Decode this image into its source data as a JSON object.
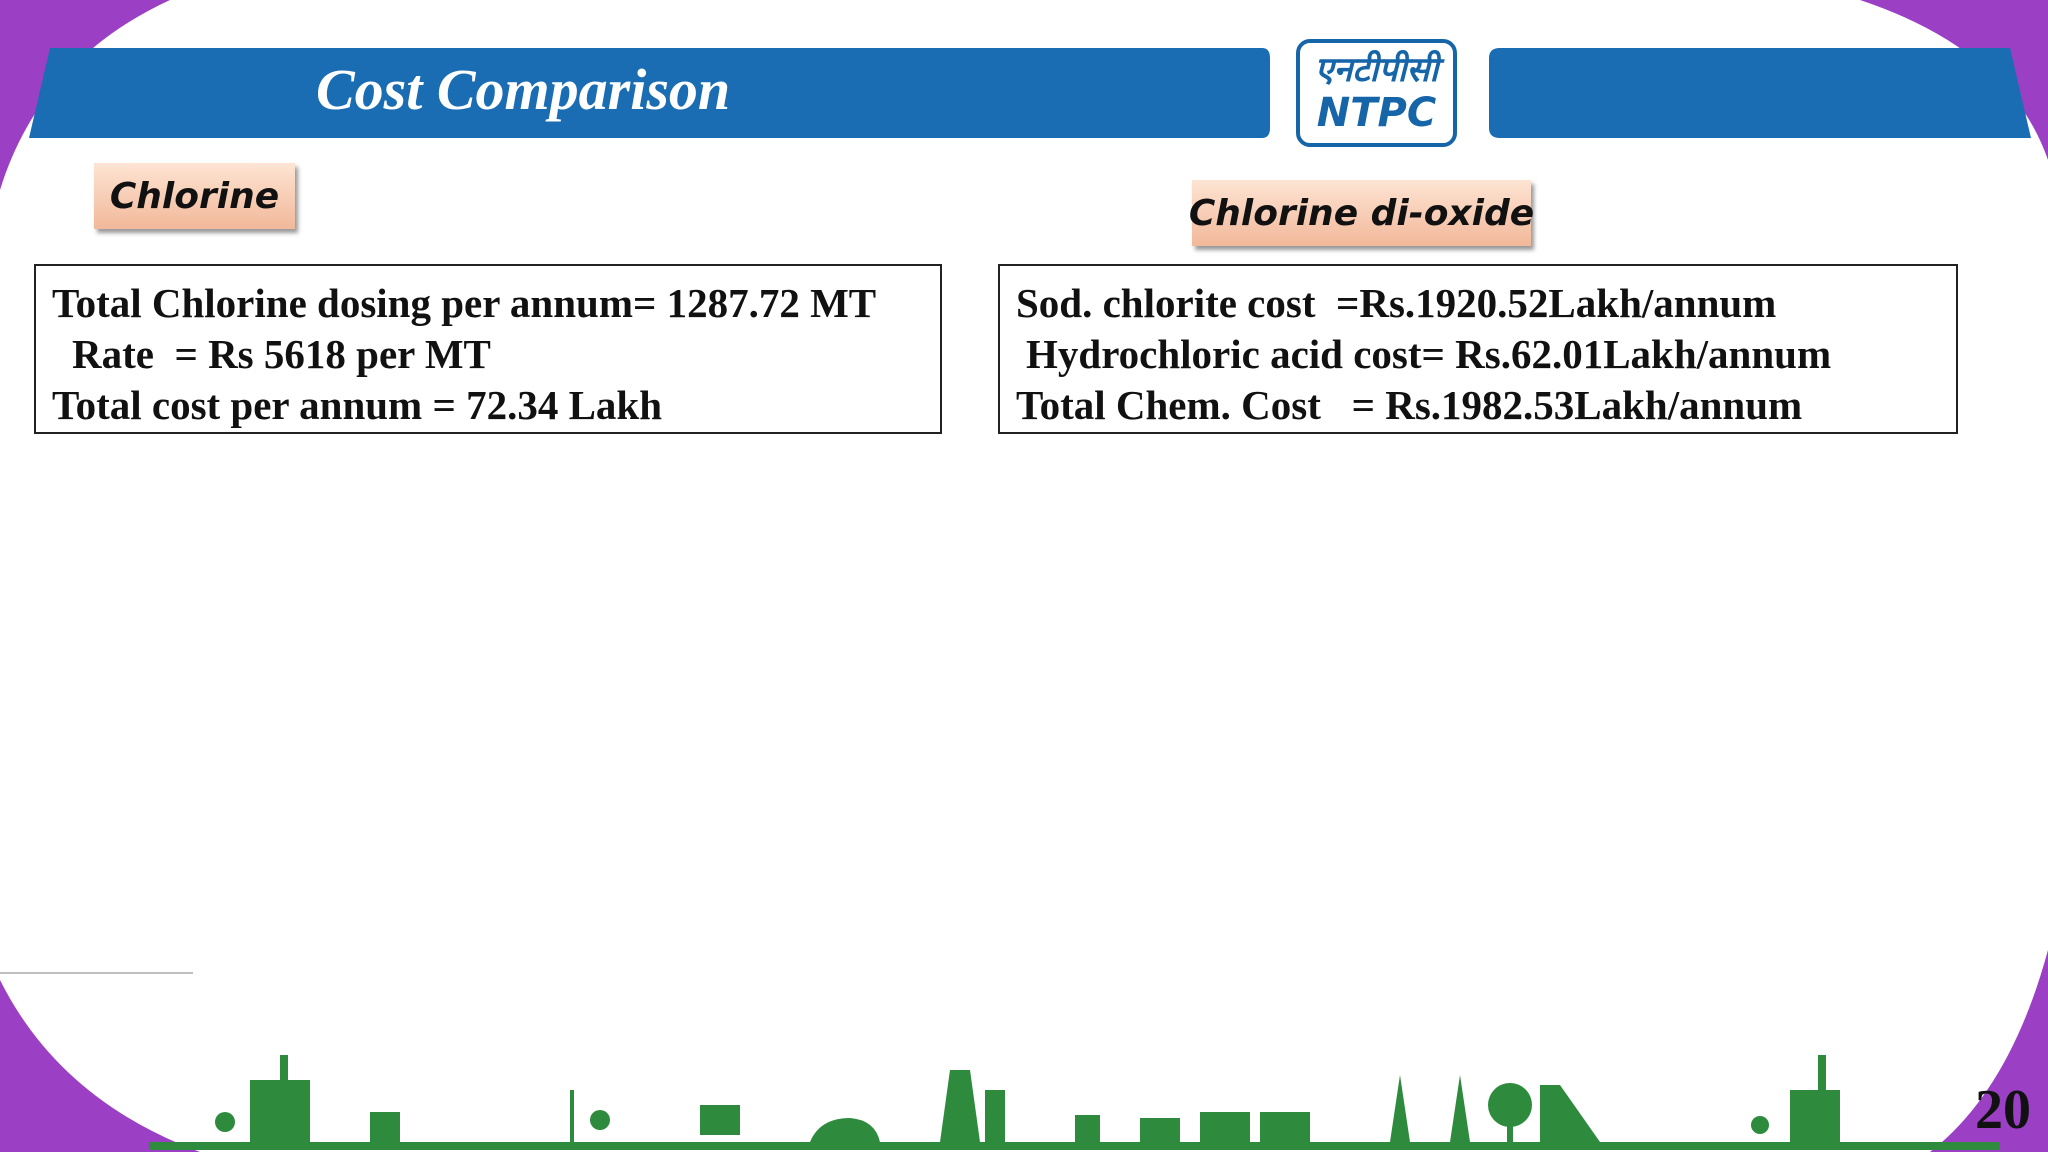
{
  "header": {
    "title": "Cost Comparison",
    "logo_hindi": "एनटीपीसी",
    "logo_english": "NTPC"
  },
  "sections": [
    {
      "label": "Chlorine",
      "lines": [
        "Total Chlorine dosing per annum= 1287.72 MT",
        "Rate  = Rs 5618 per MT",
        "Total cost per annum = 72.34 Lakh"
      ]
    },
    {
      "label": "Chlorine di-oxide",
      "lines": [
        "Sod. chlorite cost  =Rs.1920.52Lakh/annum",
        "Hydrochloric acid cost= Rs.62.01Lakh/annum",
        "Total Chem. Cost   = Rs.1982.53Lakh/annum"
      ]
    }
  ],
  "page_number": "20"
}
